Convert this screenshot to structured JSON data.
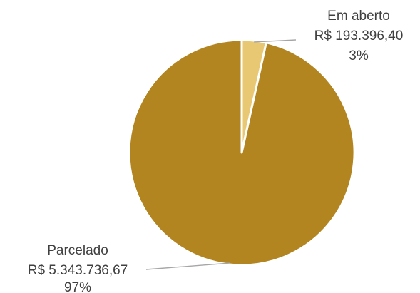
{
  "chart_data": {
    "type": "pie",
    "title": "",
    "start_angle_deg": 0,
    "direction": "clockwise",
    "colors": [
      "#e9c873",
      "#b38520"
    ],
    "legend": "none",
    "slices": [
      {
        "name": "Em aberto",
        "value": 193396.4,
        "value_label": "R$ 193.396,40",
        "percent_label": "3%",
        "color": "#e9c873"
      },
      {
        "name": "Parcelado",
        "value": 5343736.67,
        "value_label": "R$ 5.343.736,67",
        "percent_label": "97%",
        "color": "#b38520"
      }
    ]
  }
}
